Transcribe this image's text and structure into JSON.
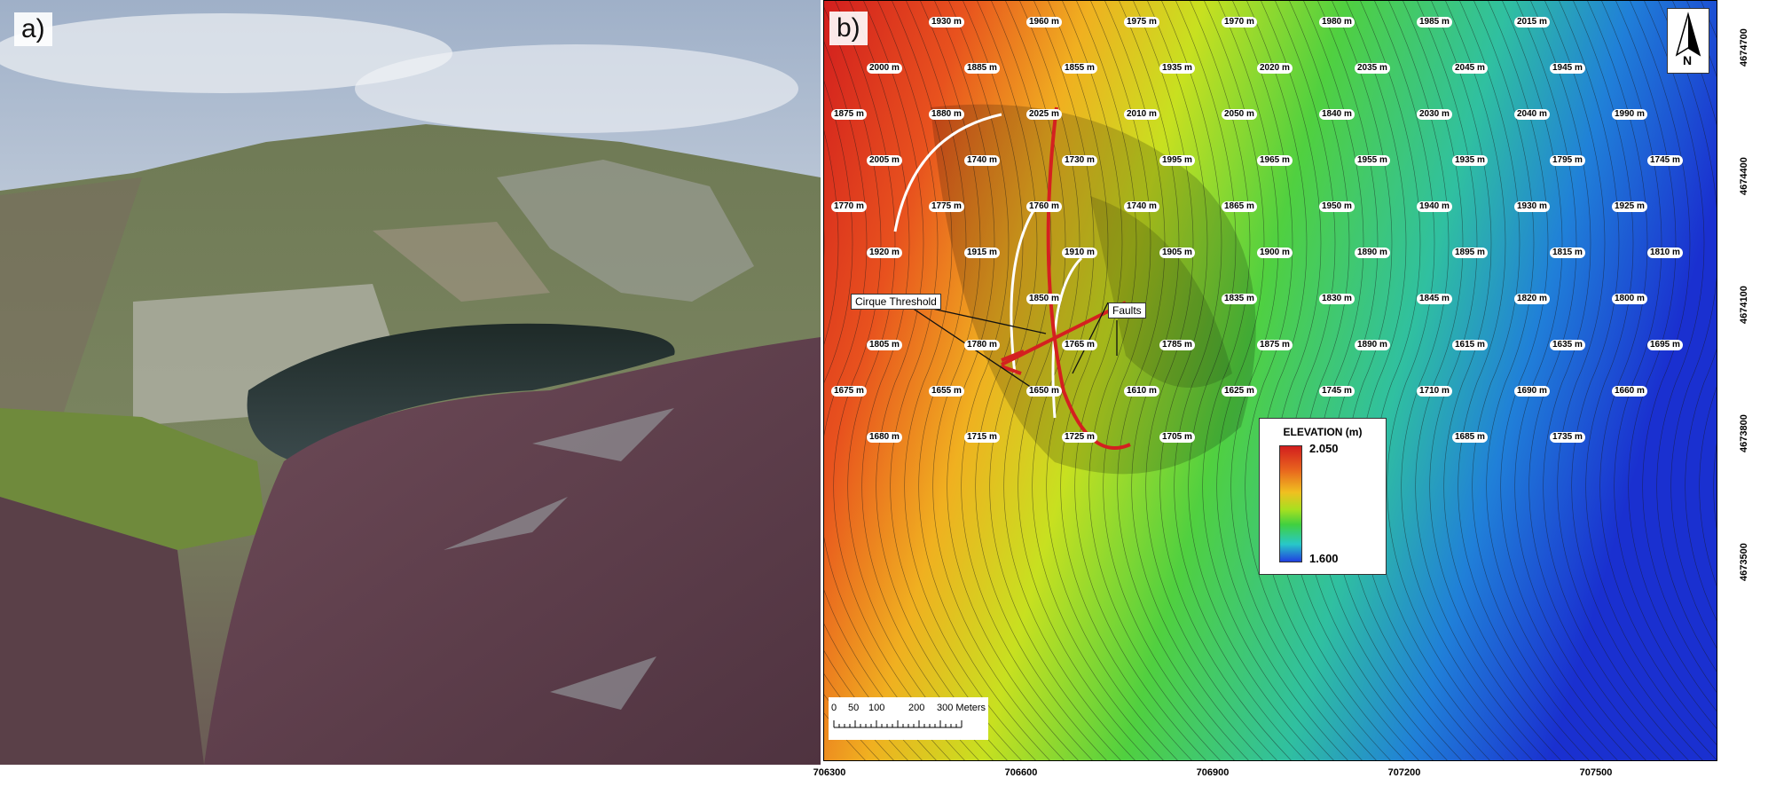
{
  "panels": {
    "a": {
      "label": "a)"
    },
    "b": {
      "label": "b)"
    }
  },
  "map": {
    "legend": {
      "title": "ELEVATION (m)",
      "max": "2.050",
      "min": "1.600",
      "colors": [
        "#d21e1e",
        "#f0c020",
        "#40d040",
        "#2040e0"
      ]
    },
    "scalebar": {
      "ticks": [
        "0",
        "50",
        "100",
        "200",
        "300 Meters"
      ]
    },
    "north": "N",
    "annotations": {
      "cirque_threshold": "Cirque Threshold",
      "faults": "Faults"
    },
    "fault_color": "#d42020",
    "x_ticks": [
      "706300",
      "706600",
      "706900",
      "707200",
      "707500"
    ],
    "y_ticks": [
      "4674700",
      "4674400",
      "4674100",
      "4673800",
      "4673500"
    ],
    "contour_labels": [
      "1930 m",
      "1960 m",
      "1975 m",
      "1970 m",
      "1980 m",
      "1985 m",
      "2015 m",
      "2000 m",
      "1885 m",
      "1855 m",
      "1935 m",
      "2020 m",
      "2035 m",
      "2045 m",
      "1945 m",
      "1875 m",
      "1880 m",
      "2025 m",
      "2010 m",
      "2050 m",
      "1840 m",
      "2030 m",
      "2040 m",
      "1990 m",
      "2005 m",
      "1740 m",
      "1730 m",
      "1995 m",
      "1965 m",
      "1955 m",
      "1935 m",
      "1795 m",
      "1745 m",
      "1770 m",
      "1775 m",
      "1760 m",
      "1740 m",
      "1865 m",
      "1950 m",
      "1940 m",
      "1930 m",
      "1925 m",
      "1920 m",
      "1915 m",
      "1910 m",
      "1905 m",
      "1900 m",
      "1890 m",
      "1895 m",
      "1815 m",
      "1810 m",
      "1850 m",
      "1835 m",
      "1830 m",
      "1845 m",
      "1820 m",
      "1800 m",
      "1805 m",
      "1780 m",
      "1765 m",
      "1785 m",
      "1875 m",
      "1890 m",
      "1615 m",
      "1635 m",
      "1695 m",
      "1675 m",
      "1655 m",
      "1650 m",
      "1610 m",
      "1625 m",
      "1745 m",
      "1710 m",
      "1690 m",
      "1660 m",
      "1680 m",
      "1715 m",
      "1725 m",
      "1705 m",
      "1685 m",
      "1735 m"
    ]
  }
}
